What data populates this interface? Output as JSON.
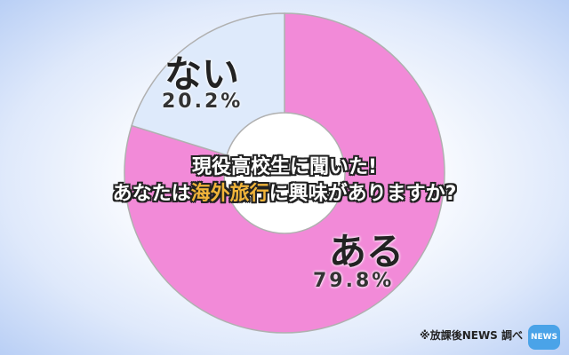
{
  "chart_data": {
    "type": "pie",
    "donut": true,
    "title": [
      "現役高校生に聞いた!",
      "あなたは",
      "海外旅行",
      "に興味がありますか?"
    ],
    "categories": [
      "ある",
      "ない"
    ],
    "values": [
      79.8,
      20.2
    ],
    "value_labels": [
      "79.8%",
      "20.2%"
    ],
    "colors": [
      "#f28ad8",
      "#deeafb"
    ]
  },
  "source": "※放課後NEWS 調べ",
  "logo": "放課後NEWS"
}
